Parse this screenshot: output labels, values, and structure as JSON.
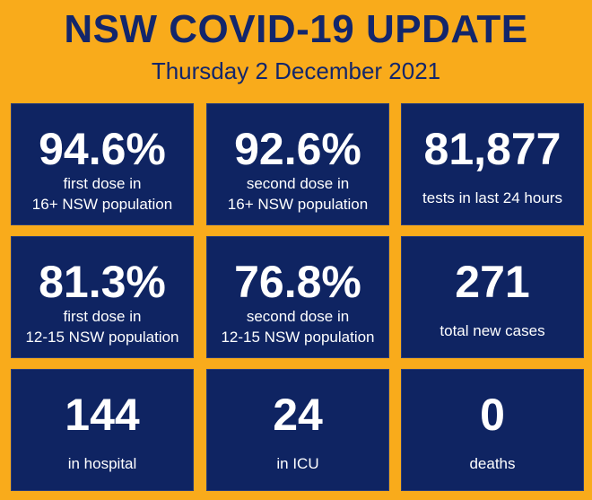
{
  "header": {
    "title": "NSW COVID-19 UPDATE",
    "date": "Thursday 2 December 2021"
  },
  "tiles": [
    {
      "value": "94.6%",
      "label": [
        "first dose in",
        "16+ NSW population"
      ]
    },
    {
      "value": "92.6%",
      "label": [
        "second dose in",
        "16+ NSW population"
      ]
    },
    {
      "value": "81,877",
      "label": [
        "tests in last 24 hours"
      ]
    },
    {
      "value": "81.3%",
      "label": [
        "first dose in",
        "12-15 NSW population"
      ]
    },
    {
      "value": "76.8%",
      "label": [
        "second dose in",
        "12-15 NSW population"
      ]
    },
    {
      "value": "271",
      "label": [
        "total new cases"
      ]
    },
    {
      "value": "144",
      "label": [
        "in hospital"
      ]
    },
    {
      "value": "24",
      "label": [
        "in ICU"
      ]
    },
    {
      "value": "0",
      "label": [
        "deaths"
      ]
    }
  ]
}
